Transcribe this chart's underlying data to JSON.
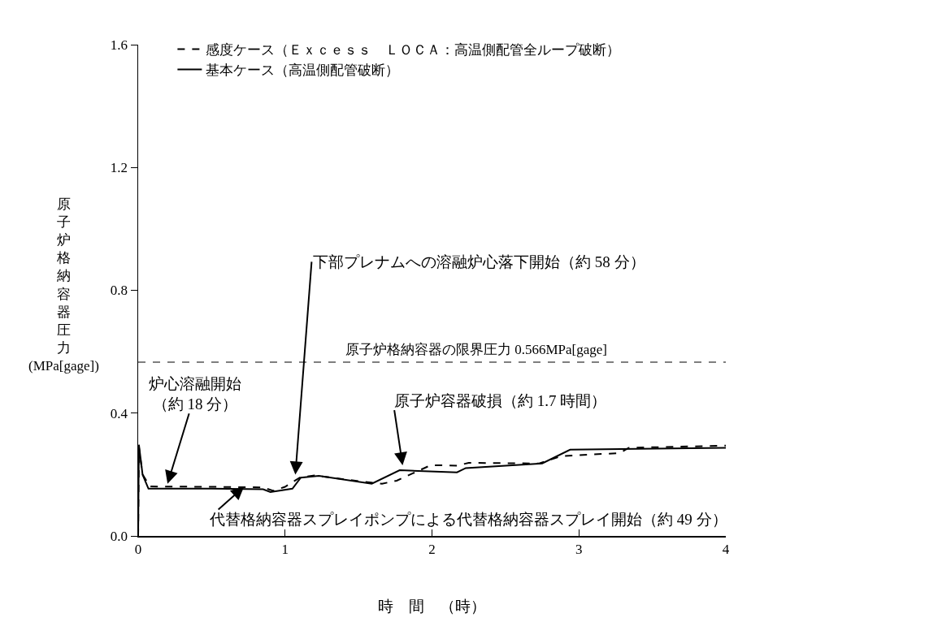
{
  "chart_data": {
    "type": "line",
    "xlabel": "時　間　（時）",
    "ylabel": "原子炉格納容器圧力\n(MPa[gage])",
    "xlim": [
      0,
      4
    ],
    "xticks": [
      0,
      1,
      2,
      3,
      4
    ],
    "ylim": [
      0,
      1.6
    ],
    "yticks": [
      {
        "value": 0,
        "label": "0.0"
      },
      {
        "value": 0.4,
        "label": "0.4"
      },
      {
        "value": 0.8,
        "label": "0.8"
      },
      {
        "value": 1.2,
        "label": "1.2"
      },
      {
        "value": 1.6,
        "label": "1.6"
      }
    ],
    "grid": false,
    "legend": "top left",
    "marker": "none",
    "series": [
      {
        "name": "感度ケース（Ｅｘｃｅｓｓ　ＬＯＣＡ：高温側配管全ループ破断）",
        "color": "#000000",
        "line_style": "dashed",
        "x": [
          0,
          0.005,
          0.03,
          0.08,
          0.5,
          0.85,
          0.92,
          1.0,
          1.1,
          1.2,
          1.51,
          1.66,
          1.76,
          1.99,
          2.05,
          2.17,
          2.25,
          2.73,
          2.88,
          3.28,
          3.34,
          4
        ],
        "values": [
          0,
          0.29,
          0.2,
          0.161,
          0.16,
          0.158,
          0.147,
          0.16,
          0.19,
          0.197,
          0.178,
          0.17,
          0.18,
          0.23,
          0.23,
          0.229,
          0.238,
          0.236,
          0.26,
          0.27,
          0.287,
          0.294
        ]
      },
      {
        "name": "基本ケース（高温側配管破断）",
        "color": "#000000",
        "line_style": "solid",
        "x": [
          0,
          0.005,
          0.03,
          0.07,
          0.5,
          0.85,
          0.9,
          1.05,
          1.107,
          1.23,
          1.59,
          1.78,
          2.17,
          2.23,
          2.75,
          2.94,
          4
        ],
        "values": [
          0,
          0.297,
          0.2,
          0.154,
          0.154,
          0.152,
          0.143,
          0.154,
          0.19,
          0.196,
          0.17,
          0.214,
          0.207,
          0.221,
          0.236,
          0.281,
          0.287
        ]
      }
    ],
    "ref_lines": [
      {
        "axis": "y",
        "value": 0.566,
        "label": "原子炉格納容器の限界圧力 0.566MPa[gage]",
        "color": "#000000",
        "line_style": "dashed"
      }
    ],
    "annotations": [
      {
        "text": "炉心溶融開始（約 18 分）",
        "x": 0.2,
        "y": 0.17
      },
      {
        "text": "下部プレナムへの溶融炉心落下開始（約 58 分）",
        "x": 1.07,
        "y": 0.2
      },
      {
        "text": "原子炉容器破損（約 1.7 時間）",
        "x": 1.8,
        "y": 0.23
      },
      {
        "text": "代替格納容器スプレイポンプによる代替格納容器スプレイ開始（約 49 分）",
        "x": 0.72,
        "y": 0.16
      }
    ]
  }
}
